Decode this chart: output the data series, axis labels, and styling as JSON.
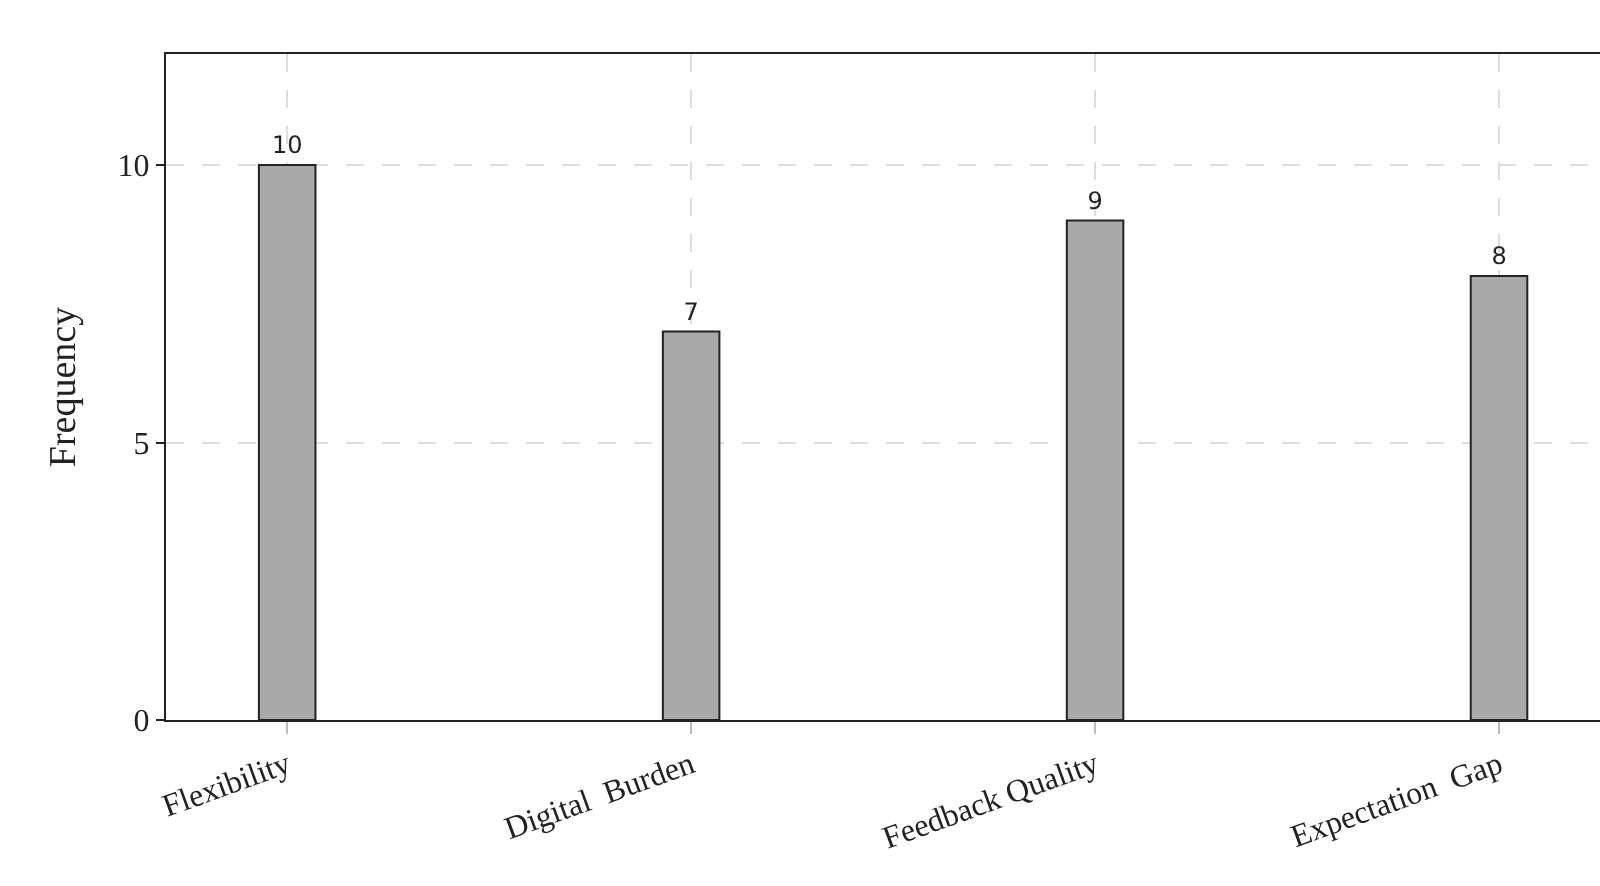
{
  "chart_data": {
    "type": "bar",
    "ylabel": "Frequency",
    "categories": [
      "Flexibility",
      "Digital  Burden",
      "Feedback Quality",
      "Expectation  Gap"
    ],
    "values": [
      10,
      7,
      9,
      8
    ],
    "color": "#a9a9a9",
    "ylim": [
      0,
      12
    ],
    "yticks": [
      0,
      5,
      10
    ],
    "grid": true,
    "data_labels": true,
    "legend": false
  }
}
